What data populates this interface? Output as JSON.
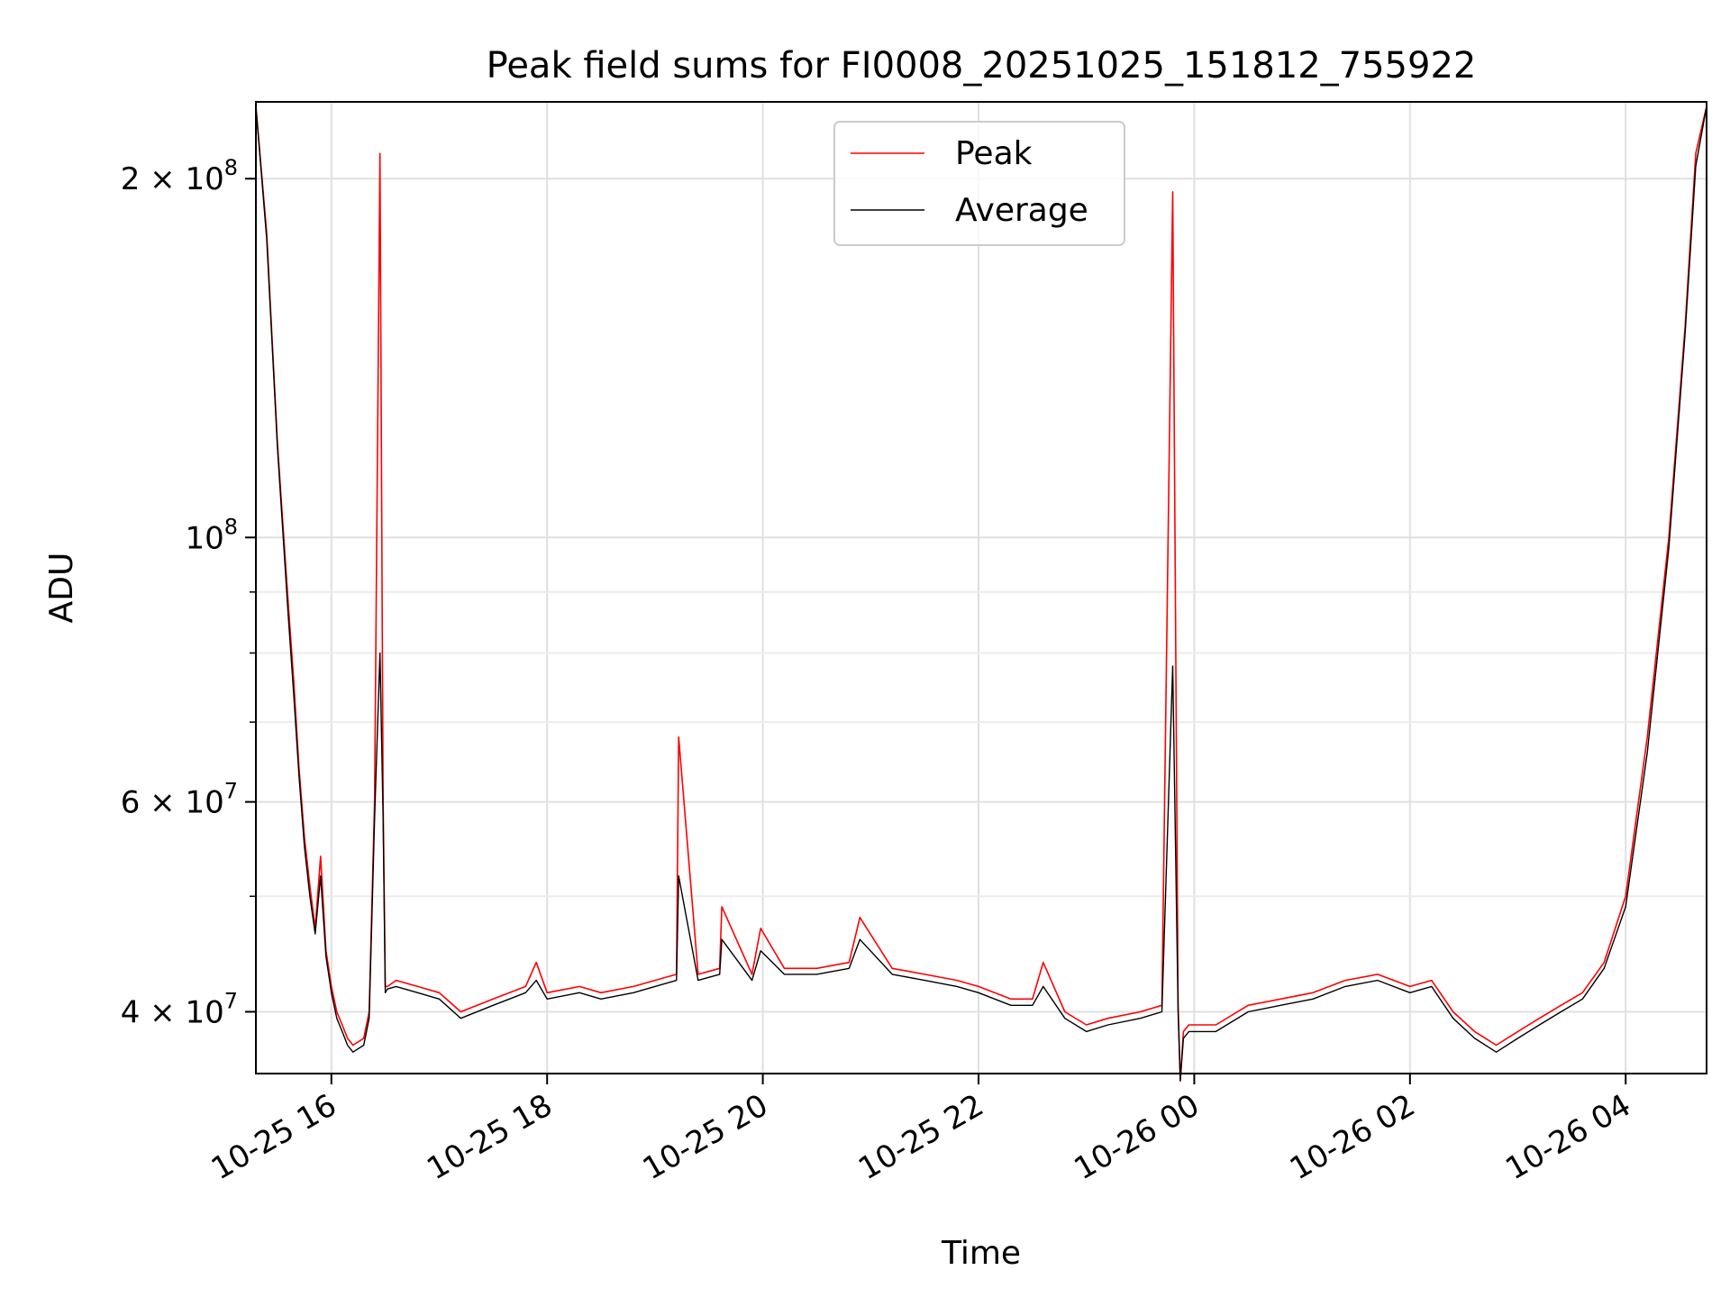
{
  "chart_data": {
    "type": "line",
    "title": "Peak field sums for FI0008_20251025_151812_755922",
    "xlabel": "Time",
    "ylabel": "ADU",
    "yscale": "log",
    "grid": true,
    "legend_position": "top-center",
    "xlim_hours": [
      -0.7,
      12.75
    ],
    "ylim": [
      35500000,
      232000000
    ],
    "x_units": "hours since 2025-10-25 16:00",
    "x_ticks": [
      {
        "x": 0,
        "label": "10-25 16"
      },
      {
        "x": 2,
        "label": "10-25 18"
      },
      {
        "x": 4,
        "label": "10-25 20"
      },
      {
        "x": 6,
        "label": "10-25 22"
      },
      {
        "x": 8,
        "label": "10-26 00"
      },
      {
        "x": 10,
        "label": "10-26 02"
      },
      {
        "x": 12,
        "label": "10-26 04"
      }
    ],
    "y_ticks": [
      {
        "value": 40000000,
        "base": "4 × 10",
        "exp": "7"
      },
      {
        "value": 60000000,
        "base": "6 × 10",
        "exp": "7"
      },
      {
        "value": 100000000,
        "base": "10",
        "exp": "8"
      },
      {
        "value": 200000000,
        "base": "2 × 10",
        "exp": "8"
      }
    ],
    "y_minor_ticks": [
      50000000,
      70000000,
      80000000,
      90000000,
      300000000
    ],
    "series": [
      {
        "name": "Peak",
        "color": "#ff0000",
        "x": [
          -0.7,
          -0.6,
          -0.5,
          -0.4,
          -0.35,
          -0.3,
          -0.25,
          -0.2,
          -0.15,
          -0.1,
          -0.05,
          0.0,
          0.05,
          0.1,
          0.15,
          0.2,
          0.3,
          0.35,
          0.4,
          0.45,
          0.48,
          0.5,
          0.52,
          0.6,
          0.8,
          1.0,
          1.2,
          1.5,
          1.8,
          1.9,
          2.0,
          2.3,
          2.5,
          2.8,
          3.0,
          3.2,
          3.22,
          3.4,
          3.6,
          3.62,
          3.9,
          3.98,
          4.2,
          4.5,
          4.8,
          4.9,
          5.2,
          5.5,
          5.8,
          6.0,
          6.3,
          6.5,
          6.6,
          6.8,
          7.0,
          7.2,
          7.5,
          7.7,
          7.8,
          7.85,
          7.87,
          7.9,
          7.95,
          8.0,
          8.2,
          8.5,
          8.8,
          9.1,
          9.4,
          9.7,
          10.0,
          10.2,
          10.4,
          10.6,
          10.8,
          11.0,
          11.2,
          11.4,
          11.6,
          11.8,
          12.0,
          12.2,
          12.4,
          12.55,
          12.65,
          12.75
        ],
        "values": [
          230000000,
          180000000,
          120000000,
          88000000,
          76000000,
          64000000,
          56000000,
          51000000,
          47000000,
          54000000,
          45000000,
          42000000,
          40000000,
          39000000,
          38000000,
          37500000,
          38000000,
          40000000,
          60000000,
          210000000,
          60000000,
          42000000,
          42000000,
          42500000,
          42000000,
          41500000,
          40000000,
          41000000,
          42000000,
          44000000,
          41500000,
          42000000,
          41500000,
          42000000,
          42500000,
          43000000,
          68000000,
          43000000,
          43500000,
          49000000,
          43000000,
          47000000,
          43500000,
          43500000,
          44000000,
          48000000,
          43500000,
          43000000,
          42500000,
          42000000,
          41000000,
          41000000,
          44000000,
          40000000,
          39000000,
          39500000,
          40000000,
          40500000,
          195000000,
          40500000,
          35000000,
          38500000,
          39000000,
          39000000,
          39000000,
          40500000,
          41000000,
          41500000,
          42500000,
          43000000,
          42000000,
          42500000,
          40000000,
          38500000,
          37500000,
          38500000,
          39500000,
          40500000,
          41500000,
          44000000,
          50000000,
          68000000,
          100000000,
          150000000,
          210000000,
          230000000
        ]
      },
      {
        "name": "Average",
        "color": "#000000",
        "x": [
          -0.7,
          -0.6,
          -0.5,
          -0.4,
          -0.35,
          -0.3,
          -0.25,
          -0.2,
          -0.15,
          -0.1,
          -0.05,
          0.0,
          0.05,
          0.1,
          0.15,
          0.2,
          0.3,
          0.35,
          0.4,
          0.45,
          0.48,
          0.5,
          0.52,
          0.6,
          0.8,
          1.0,
          1.2,
          1.5,
          1.8,
          1.9,
          2.0,
          2.3,
          2.5,
          2.8,
          3.0,
          3.2,
          3.22,
          3.4,
          3.6,
          3.62,
          3.9,
          3.98,
          4.2,
          4.5,
          4.8,
          4.9,
          5.2,
          5.5,
          5.8,
          6.0,
          6.3,
          6.5,
          6.6,
          6.8,
          7.0,
          7.2,
          7.5,
          7.7,
          7.8,
          7.85,
          7.87,
          7.9,
          7.95,
          8.0,
          8.2,
          8.5,
          8.8,
          9.1,
          9.4,
          9.7,
          10.0,
          10.2,
          10.4,
          10.6,
          10.8,
          11.0,
          11.2,
          11.4,
          11.6,
          11.8,
          12.0,
          12.2,
          12.4,
          12.55,
          12.65,
          12.75
        ],
        "values": [
          230000000,
          178000000,
          119000000,
          86000000,
          74000000,
          63000000,
          55000000,
          50000000,
          46500000,
          52000000,
          44500000,
          41500000,
          39500000,
          38500000,
          37500000,
          37000000,
          37500000,
          39500000,
          58000000,
          80000000,
          58000000,
          41500000,
          41800000,
          42000000,
          41500000,
          41000000,
          39500000,
          40500000,
          41500000,
          42500000,
          41000000,
          41500000,
          41000000,
          41500000,
          42000000,
          42500000,
          52000000,
          42500000,
          43000000,
          46000000,
          42500000,
          45000000,
          43000000,
          43000000,
          43500000,
          46000000,
          43000000,
          42500000,
          42000000,
          41500000,
          40500000,
          40500000,
          42000000,
          39500000,
          38500000,
          39000000,
          39500000,
          40000000,
          78000000,
          40000000,
          35000000,
          38000000,
          38500000,
          38500000,
          38500000,
          40000000,
          40500000,
          41000000,
          42000000,
          42500000,
          41500000,
          42000000,
          39500000,
          38000000,
          37000000,
          38000000,
          39000000,
          40000000,
          41000000,
          43500000,
          49000000,
          66000000,
          98000000,
          148000000,
          205000000,
          230000000
        ]
      }
    ]
  }
}
